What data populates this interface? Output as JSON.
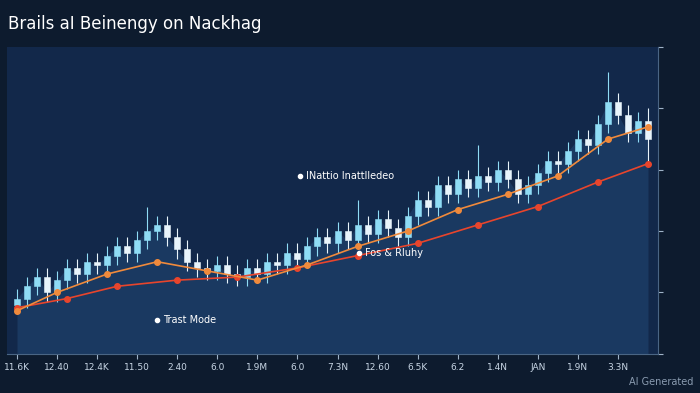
{
  "chart_data": {
    "type": "candlestick",
    "title": "Brails aI Beinengy on Nackhag",
    "categories": [
      "11.6K",
      null,
      null,
      null,
      "12.40",
      null,
      null,
      null,
      "12.4K",
      null,
      null,
      null,
      "11.50",
      null,
      null,
      null,
      "2.40",
      null,
      null,
      null,
      "6.0",
      null,
      null,
      null,
      "1.9M",
      null,
      null,
      null,
      "6.0",
      null,
      null,
      null,
      "7.3N",
      null,
      null,
      null,
      "12.60",
      null,
      null,
      null,
      "6.5K",
      null,
      null,
      null,
      "6.2",
      null,
      null,
      null,
      "1.4N",
      null,
      null,
      null,
      "JAN",
      null,
      null,
      null,
      "1.9N",
      null,
      null,
      null,
      "3.3N",
      null,
      null,
      null
    ],
    "open": [
      16,
      18,
      22,
      25,
      20,
      24,
      28,
      26,
      30,
      29,
      32,
      35,
      33,
      37,
      40,
      42,
      38,
      34,
      30,
      28,
      27,
      29,
      26,
      25,
      28,
      26,
      30,
      29,
      33,
      31,
      35,
      38,
      36,
      40,
      37,
      42,
      39,
      44,
      41,
      38,
      45,
      50,
      48,
      55,
      52,
      57,
      54,
      58,
      56,
      60,
      57,
      52,
      55,
      59,
      63,
      62,
      66,
      70,
      68,
      75,
      82,
      78,
      72,
      76
    ],
    "high": [
      21,
      25,
      28,
      28,
      27,
      31,
      31,
      33,
      33,
      35,
      38,
      38,
      40,
      48,
      45,
      45,
      41,
      37,
      33,
      31,
      32,
      32,
      29,
      31,
      31,
      33,
      33,
      36,
      36,
      38,
      41,
      41,
      43,
      43,
      50,
      45,
      47,
      47,
      44,
      48,
      53,
      53,
      58,
      58,
      60,
      60,
      68,
      61,
      63,
      63,
      60,
      58,
      62,
      66,
      66,
      69,
      73,
      73,
      78,
      92,
      85,
      81,
      79,
      80
    ],
    "low": [
      13,
      15,
      19,
      17,
      17,
      21,
      23,
      23,
      26,
      26,
      29,
      30,
      30,
      34,
      37,
      35,
      31,
      27,
      25,
      24,
      24,
      23,
      22,
      22,
      23,
      23,
      26,
      26,
      28,
      28,
      32,
      33,
      33,
      34,
      34,
      36,
      36,
      38,
      35,
      35,
      42,
      45,
      45,
      49,
      49,
      51,
      51,
      53,
      53,
      54,
      49,
      49,
      52,
      56,
      59,
      59,
      63,
      65,
      65,
      72,
      75,
      69,
      69,
      62
    ],
    "close": [
      18,
      22,
      25,
      20,
      24,
      28,
      26,
      30,
      29,
      32,
      35,
      33,
      37,
      40,
      42,
      38,
      34,
      30,
      28,
      27,
      29,
      26,
      25,
      28,
      26,
      30,
      29,
      33,
      31,
      35,
      38,
      36,
      40,
      37,
      42,
      39,
      44,
      41,
      38,
      45,
      50,
      48,
      55,
      52,
      57,
      54,
      58,
      56,
      60,
      57,
      52,
      55,
      59,
      63,
      62,
      66,
      70,
      68,
      75,
      82,
      78,
      72,
      76,
      70
    ],
    "color": "#8fdcf5",
    "lines": [
      {
        "color": "#e8452c",
        "marker": "o",
        "line_style": "solid",
        "x": [
          0,
          5,
          10,
          16,
          22,
          28,
          34,
          40,
          46,
          52,
          58,
          63
        ],
        "values": [
          15,
          18,
          22,
          24,
          25,
          28,
          32,
          36,
          42,
          48,
          56,
          62
        ]
      },
      {
        "color": "#f08a3c",
        "marker": "o",
        "line_style": "solid",
        "x": [
          0,
          4,
          9,
          14,
          19,
          24,
          29,
          34,
          39,
          44,
          49,
          54,
          59,
          63
        ],
        "values": [
          14,
          20,
          26,
          30,
          27,
          24,
          29,
          35,
          40,
          47,
          52,
          58,
          70,
          74
        ]
      }
    ],
    "annotations": [
      "INattio Inattlledeo",
      "Fos & Rluhy",
      "Trast Mode"
    ],
    "watermark": "AI Generated",
    "ylim": [
      0,
      100
    ],
    "yticks": [
      0,
      20,
      40,
      60,
      80,
      100
    ],
    "grid": false,
    "tick_labels": "x"
  }
}
